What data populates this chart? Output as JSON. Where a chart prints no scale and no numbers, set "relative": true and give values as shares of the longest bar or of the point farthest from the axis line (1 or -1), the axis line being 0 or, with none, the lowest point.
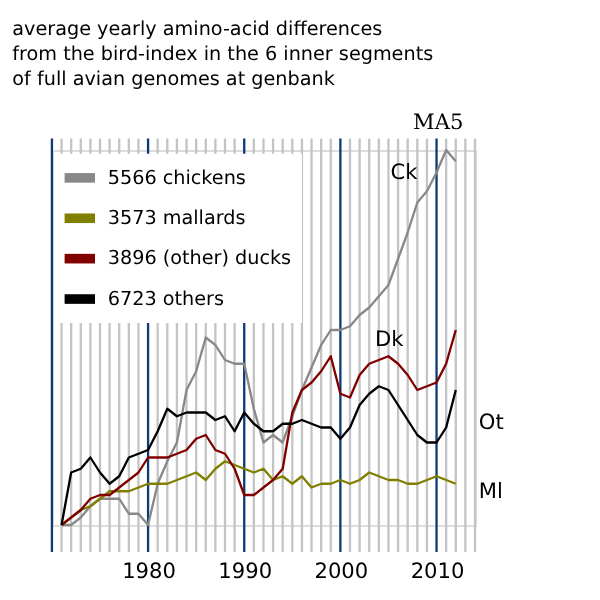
{
  "chart_data": {
    "type": "line",
    "title": "average yearly amino-acid differences\nfrom the bird-index  in the 6 inner segments\nof full avian  genomes at genbank",
    "annotations": [
      "MA5",
      "Ck",
      "Dk",
      "Ot",
      "Ml"
    ],
    "relative": true,
    "x": [
      1971,
      1972,
      1973,
      1974,
      1975,
      1976,
      1977,
      1978,
      1979,
      1980,
      1981,
      1982,
      1983,
      1984,
      1985,
      1986,
      1987,
      1988,
      1989,
      1990,
      1991,
      1992,
      1993,
      1994,
      1995,
      1996,
      1997,
      1998,
      1999,
      2000,
      2001,
      2002,
      2003,
      2004,
      2005,
      2006,
      2007,
      2008,
      2009,
      2010,
      2011,
      2012
    ],
    "xlim": [
      1970,
      2014
    ],
    "xticks": [
      {
        "value": 1970,
        "label": null
      },
      {
        "value": 1971,
        "label": null
      },
      {
        "value": 1972,
        "label": null
      },
      {
        "value": 1973,
        "label": null
      },
      {
        "value": 1974,
        "label": null
      },
      {
        "value": 1975,
        "label": null
      },
      {
        "value": 1976,
        "label": null
      },
      {
        "value": 1977,
        "label": null
      },
      {
        "value": 1978,
        "label": null
      },
      {
        "value": 1979,
        "label": null
      },
      1980,
      {
        "value": 1981,
        "label": null
      },
      {
        "value": 1982,
        "label": null
      },
      {
        "value": 1983,
        "label": null
      },
      {
        "value": 1984,
        "label": null
      },
      {
        "value": 1985,
        "label": null
      },
      {
        "value": 1986,
        "label": null
      },
      {
        "value": 1987,
        "label": null
      },
      {
        "value": 1988,
        "label": null
      },
      {
        "value": 1989,
        "label": null
      },
      1990,
      {
        "value": 1991,
        "label": null
      },
      {
        "value": 1992,
        "label": null
      },
      {
        "value": 1993,
        "label": null
      },
      {
        "value": 1994,
        "label": null
      },
      {
        "value": 1995,
        "label": null
      },
      {
        "value": 1996,
        "label": null
      },
      {
        "value": 1997,
        "label": null
      },
      {
        "value": 1998,
        "label": null
      },
      {
        "value": 1999,
        "label": null
      },
      2000,
      {
        "value": 2001,
        "label": null
      },
      {
        "value": 2002,
        "label": null
      },
      {
        "value": 2003,
        "label": null
      },
      {
        "value": 2004,
        "label": null
      },
      {
        "value": 2005,
        "label": null
      },
      {
        "value": 2006,
        "label": null
      },
      {
        "value": 2007,
        "label": null
      },
      {
        "value": 2008,
        "label": null
      },
      {
        "value": 2009,
        "label": null
      },
      2010,
      {
        "value": 2011,
        "label": null
      },
      {
        "value": 2012,
        "label": null
      },
      {
        "value": 2013,
        "label": null
      },
      {
        "value": 2014,
        "label": null
      }
    ],
    "tick_labels": "x",
    "grid": "x",
    "legend": "top left",
    "marker": "none",
    "line_style": "solid",
    "series": [
      {
        "name": "5566 chickens",
        "color": "#888888",
        "values": [
          0,
          0,
          0.02,
          0.05,
          0.07,
          0.07,
          0.07,
          0.03,
          0.03,
          0,
          0.11,
          0.17,
          0.22,
          0.36,
          0.41,
          0.5,
          0.48,
          0.44,
          0.43,
          0.43,
          0.31,
          0.22,
          0.24,
          0.22,
          0.29,
          0.36,
          0.42,
          0.48,
          0.52,
          0.52,
          0.53,
          0.56,
          0.58,
          0.61,
          0.64,
          0.71,
          0.78,
          0.86,
          0.89,
          0.94,
          1,
          0.97
        ]
      },
      {
        "name": "3573 mallards",
        "color": "#808000",
        "values": [
          0,
          0.02,
          0.04,
          0.05,
          0.07,
          0.09,
          0.09,
          0.09,
          0.1,
          0.11,
          0.11,
          0.11,
          0.12,
          0.13,
          0.14,
          0.12,
          0.15,
          0.17,
          0.16,
          0.15,
          0.14,
          0.15,
          0.12,
          0.13,
          0.11,
          0.13,
          0.1,
          0.11,
          0.11,
          0.12,
          0.11,
          0.12,
          0.14,
          0.13,
          0.12,
          0.12,
          0.11,
          0.11,
          0.12,
          0.13,
          0.12,
          0.11
        ]
      },
      {
        "name": "3896  (other) ducks",
        "color": "#800000",
        "values": [
          0,
          0.02,
          0.04,
          0.07,
          0.08,
          0.08,
          0.1,
          0.12,
          0.14,
          0.18,
          0.18,
          0.18,
          0.19,
          0.2,
          0.23,
          0.24,
          0.2,
          0.19,
          0.15,
          0.08,
          0.08,
          0.1,
          0.12,
          0.15,
          0.3,
          0.36,
          0.38,
          0.41,
          0.45,
          0.35,
          0.34,
          0.4,
          0.43,
          0.44,
          0.45,
          0.43,
          0.4,
          0.36,
          0.37,
          0.38,
          0.43,
          0.52
        ]
      },
      {
        "name": "6723 others",
        "color": "#000000",
        "values": [
          0,
          0.14,
          0.15,
          0.18,
          0.14,
          0.11,
          0.13,
          0.18,
          0.19,
          0.2,
          0.25,
          0.31,
          0.29,
          0.3,
          0.3,
          0.3,
          0.28,
          0.29,
          0.25,
          0.3,
          0.27,
          0.25,
          0.25,
          0.27,
          0.27,
          0.28,
          0.27,
          0.26,
          0.26,
          0.23,
          0.26,
          0.32,
          0.35,
          0.37,
          0.36,
          0.32,
          0.28,
          0.24,
          0.22,
          0.22,
          0.26,
          0.36
        ]
      }
    ]
  }
}
